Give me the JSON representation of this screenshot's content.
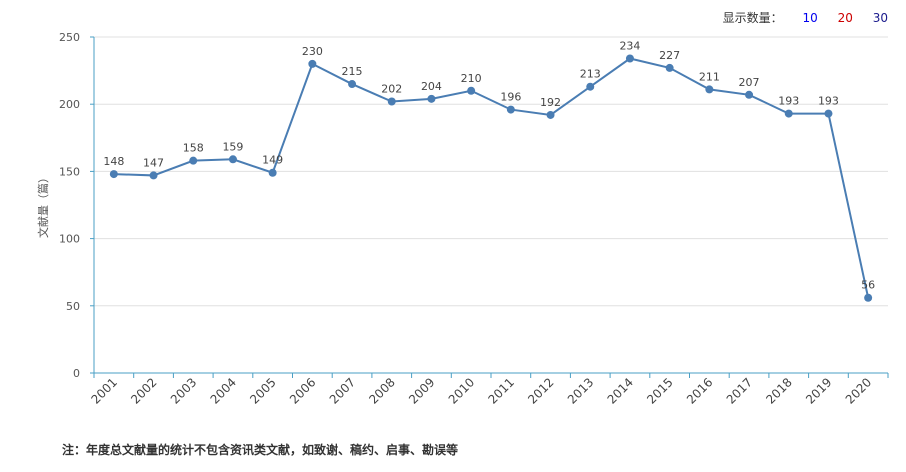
{
  "display_count": {
    "label": "显示数量：",
    "options": [
      {
        "text": "10",
        "color": "#0000ee"
      },
      {
        "text": "20",
        "color": "#cc0000"
      },
      {
        "text": "30",
        "color": "#1a1a8c"
      }
    ]
  },
  "footnote": "注：年度总文献量的统计不包含资讯类文献，如致谢、稿约、启事、勘误等",
  "colors": {
    "line": "#4a7db3",
    "axis": "#4a9fc4",
    "grid": "#e0e0e0"
  },
  "chart_data": {
    "type": "line",
    "title": "",
    "xlabel": "",
    "ylabel": "文献量（篇）",
    "ylim": [
      0,
      250
    ],
    "yticks": [
      0,
      50,
      100,
      150,
      200,
      250
    ],
    "grid": true,
    "categories": [
      "2001",
      "2002",
      "2003",
      "2004",
      "2005",
      "2006",
      "2007",
      "2008",
      "2009",
      "2010",
      "2011",
      "2012",
      "2013",
      "2014",
      "2015",
      "2016",
      "2017",
      "2018",
      "2019",
      "2020"
    ],
    "series": [
      {
        "values": [
          148,
          147,
          158,
          159,
          149,
          230,
          215,
          202,
          204,
          210,
          196,
          192,
          213,
          234,
          227,
          211,
          207,
          193,
          193,
          56
        ]
      }
    ]
  }
}
